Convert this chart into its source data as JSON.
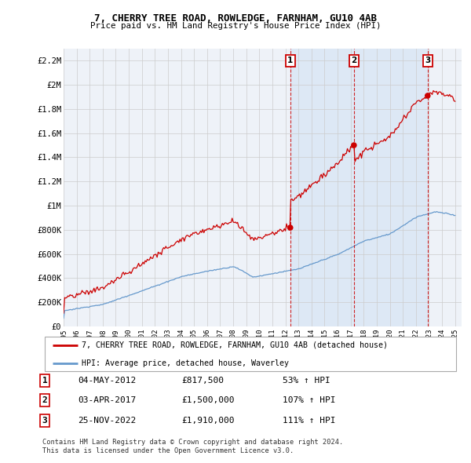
{
  "title": "7, CHERRY TREE ROAD, ROWLEDGE, FARNHAM, GU10 4AB",
  "subtitle": "Price paid vs. HM Land Registry's House Price Index (HPI)",
  "ylim": [
    0,
    2300000
  ],
  "yticks": [
    0,
    200000,
    400000,
    600000,
    800000,
    1000000,
    1200000,
    1400000,
    1600000,
    1800000,
    2000000,
    2200000
  ],
  "ytick_labels": [
    "£0",
    "£200K",
    "£400K",
    "£600K",
    "£800K",
    "£1M",
    "£1.2M",
    "£1.4M",
    "£1.6M",
    "£1.8M",
    "£2M",
    "£2.2M"
  ],
  "sale_years": [
    2012.37,
    2017.25,
    2022.9
  ],
  "sale_prices": [
    817500,
    1500000,
    1910000
  ],
  "sale_labels": [
    "1",
    "2",
    "3"
  ],
  "line_color_red": "#cc0000",
  "line_color_blue": "#6699cc",
  "shade_color": "#dde8f5",
  "grid_color": "#cccccc",
  "background_color": "#ffffff",
  "chart_bg": "#eef2f8",
  "legend_label_red": "7, CHERRY TREE ROAD, ROWLEDGE, FARNHAM, GU10 4AB (detached house)",
  "legend_label_blue": "HPI: Average price, detached house, Waverley",
  "table_rows": [
    [
      "1",
      "04-MAY-2012",
      "£817,500",
      "53% ↑ HPI"
    ],
    [
      "2",
      "03-APR-2017",
      "£1,500,000",
      "107% ↑ HPI"
    ],
    [
      "3",
      "25-NOV-2022",
      "£1,910,000",
      "111% ↑ HPI"
    ]
  ],
  "footnote1": "Contains HM Land Registry data © Crown copyright and database right 2024.",
  "footnote2": "This data is licensed under the Open Government Licence v3.0.",
  "xlim": [
    1995,
    2025.5
  ],
  "xtick_years": [
    1995,
    1996,
    1997,
    1998,
    1999,
    2000,
    2001,
    2002,
    2003,
    2004,
    2005,
    2006,
    2007,
    2008,
    2009,
    2010,
    2011,
    2012,
    2013,
    2014,
    2015,
    2016,
    2017,
    2018,
    2019,
    2020,
    2021,
    2022,
    2023,
    2024,
    2025
  ]
}
